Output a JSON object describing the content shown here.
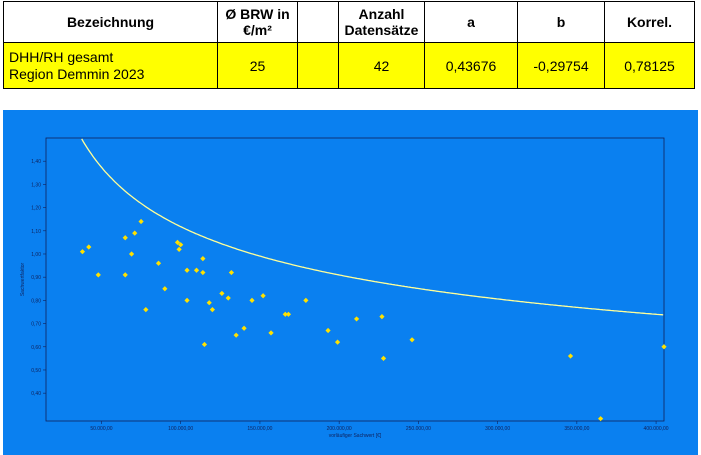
{
  "table": {
    "headers": [
      "Bezeichnung",
      "Ø BRW in €/m²",
      "",
      "Anzahl Datensätze",
      "a",
      "b",
      "Korrel."
    ],
    "row": {
      "name_line1": "DHH/RH gesamt",
      "name_line2": "Region Demmin 2023",
      "brw": "25",
      "empty": "",
      "count": "42",
      "a": "0,43676",
      "b": "-0,29754",
      "korrel": "0,78125"
    }
  },
  "chart_data": {
    "type": "scatter",
    "xlabel": "vorläufiger Sachwert [€]",
    "ylabel": "Sachwertfaktor",
    "xlim": [
      15000,
      405000
    ],
    "ylim": [
      0.28,
      1.5
    ],
    "x_ticks": [
      50000,
      100000,
      150000,
      200000,
      250000,
      300000,
      350000,
      400000
    ],
    "x_tick_labels": [
      "50.000,00",
      "100.000,00",
      "150.000,00",
      "200.000,00",
      "250.000,00",
      "300.000,00",
      "350.000,00",
      "400.000,00"
    ],
    "y_ticks": [
      0.4,
      0.5,
      0.6,
      0.7,
      0.8,
      0.9,
      1.0,
      1.1,
      1.2,
      1.3,
      1.4
    ],
    "y_tick_labels": [
      "0,40",
      "0,50",
      "0,60",
      "0,70",
      "0,80",
      "0,90",
      "1,00",
      "1,10",
      "1,20",
      "1,30",
      "1,40"
    ],
    "colors": {
      "background": "#0a80f0",
      "points": "#ffe100",
      "curve": "#ffff99",
      "axis": "#10205a"
    },
    "curve": {
      "formula": "y = a * x^b",
      "a_scaled_for_k_euro": 4.4,
      "b": -0.29754
    },
    "points": [
      {
        "x": 38000,
        "y": 1.01
      },
      {
        "x": 42000,
        "y": 1.03
      },
      {
        "x": 48000,
        "y": 0.91
      },
      {
        "x": 65000,
        "y": 1.07
      },
      {
        "x": 65000,
        "y": 0.91
      },
      {
        "x": 69000,
        "y": 1.0
      },
      {
        "x": 71000,
        "y": 1.09
      },
      {
        "x": 75000,
        "y": 1.14
      },
      {
        "x": 78000,
        "y": 0.76
      },
      {
        "x": 86000,
        "y": 0.96
      },
      {
        "x": 90000,
        "y": 0.85
      },
      {
        "x": 98000,
        "y": 1.05
      },
      {
        "x": 99000,
        "y": 1.02
      },
      {
        "x": 100000,
        "y": 1.04
      },
      {
        "x": 104000,
        "y": 0.8
      },
      {
        "x": 104000,
        "y": 0.93
      },
      {
        "x": 110000,
        "y": 0.93
      },
      {
        "x": 114000,
        "y": 0.98
      },
      {
        "x": 114000,
        "y": 0.92
      },
      {
        "x": 115000,
        "y": 0.61
      },
      {
        "x": 118000,
        "y": 0.79
      },
      {
        "x": 120000,
        "y": 0.76
      },
      {
        "x": 126000,
        "y": 0.83
      },
      {
        "x": 130000,
        "y": 0.81
      },
      {
        "x": 132000,
        "y": 0.92
      },
      {
        "x": 135000,
        "y": 0.65
      },
      {
        "x": 140000,
        "y": 0.68
      },
      {
        "x": 145000,
        "y": 0.8
      },
      {
        "x": 152000,
        "y": 0.82
      },
      {
        "x": 157000,
        "y": 0.66
      },
      {
        "x": 166000,
        "y": 0.74
      },
      {
        "x": 168000,
        "y": 0.74
      },
      {
        "x": 179000,
        "y": 0.8
      },
      {
        "x": 193000,
        "y": 0.67
      },
      {
        "x": 199000,
        "y": 0.62
      },
      {
        "x": 211000,
        "y": 0.72
      },
      {
        "x": 227000,
        "y": 0.73
      },
      {
        "x": 228000,
        "y": 0.55
      },
      {
        "x": 246000,
        "y": 0.63
      },
      {
        "x": 346000,
        "y": 0.56
      },
      {
        "x": 365000,
        "y": 0.29
      },
      {
        "x": 405000,
        "y": 0.6
      }
    ]
  }
}
